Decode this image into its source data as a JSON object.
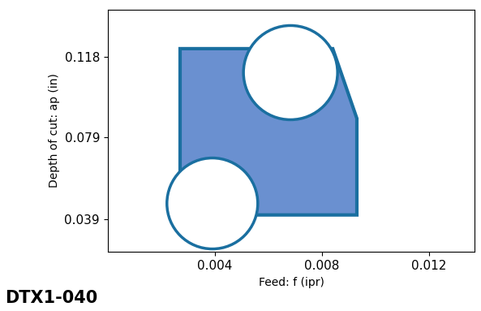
{
  "chart_data": {
    "type": "polygon",
    "x_label": "Feed: f (ipr)",
    "y_label": "Depth of cut: ap (in)",
    "annotations": [
      "DTX1-040"
    ],
    "x": [
      0.0027,
      0.0084,
      0.0093,
      0.0093,
      0.0027
    ],
    "values": [
      0.122,
      0.122,
      0.088,
      0.041,
      0.041
    ],
    "color": "#6a90d0",
    "xlim": [
      0,
      0.0137
    ],
    "xticks": [
      0.004,
      0.008,
      0.012
    ],
    "ylim": [
      0.023,
      0.141
    ],
    "yticks": [
      0.039,
      0.079,
      0.118
    ],
    "grid": false
  }
}
